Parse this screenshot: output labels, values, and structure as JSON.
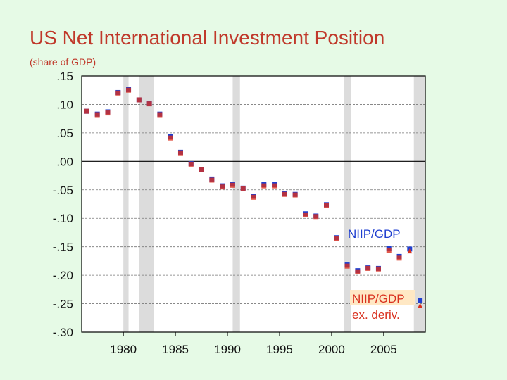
{
  "slide": {
    "title": "US Net International Investment Position",
    "subtitle": "(share of GDP)"
  },
  "chart_data": {
    "type": "scatter",
    "title": "",
    "xlabel": "",
    "ylabel": "",
    "xlim": [
      1976,
      2009
    ],
    "ylim": [
      -0.3,
      0.15
    ],
    "x_ticks": [
      1980,
      1985,
      1990,
      1995,
      2000,
      2005
    ],
    "x_tick_labels": [
      "1980",
      "1985",
      "1990",
      "1995",
      "2000",
      "2005"
    ],
    "y_ticks": [
      0.15,
      0.1,
      0.05,
      0.0,
      -0.05,
      -0.1,
      -0.15,
      -0.2,
      -0.25,
      -0.3
    ],
    "y_tick_labels": [
      ".15",
      ".10",
      ".05",
      ".00",
      "-.05",
      "-.10",
      "-.15",
      "-.20",
      "-.25",
      "-.30"
    ],
    "grid": true,
    "recession_shading": [
      [
        1980.0,
        1980.5
      ],
      [
        1981.5,
        1982.9
      ],
      [
        1990.5,
        1991.2
      ],
      [
        2001.2,
        2001.9
      ],
      [
        2007.9,
        2009.0
      ]
    ],
    "series": [
      {
        "name": "NIIP/GDP",
        "color": "#1f3fd0",
        "marker": "square",
        "points": [
          [
            1976.5,
            0.088
          ],
          [
            1977.5,
            0.083
          ],
          [
            1978.5,
            0.087
          ],
          [
            1979.5,
            0.121
          ],
          [
            1980.5,
            0.126
          ],
          [
            1981.5,
            0.108
          ],
          [
            1982.5,
            0.102
          ],
          [
            1983.5,
            0.083
          ],
          [
            1984.5,
            0.044
          ],
          [
            1985.5,
            0.016
          ],
          [
            1986.5,
            -0.004
          ],
          [
            1987.5,
            -0.014
          ],
          [
            1988.5,
            -0.031
          ],
          [
            1989.5,
            -0.043
          ],
          [
            1990.5,
            -0.04
          ],
          [
            1991.5,
            -0.047
          ],
          [
            1992.5,
            -0.061
          ],
          [
            1993.5,
            -0.041
          ],
          [
            1994.5,
            -0.041
          ],
          [
            1995.5,
            -0.056
          ],
          [
            1996.5,
            -0.058
          ],
          [
            1997.5,
            -0.092
          ],
          [
            1998.5,
            -0.096
          ],
          [
            1999.5,
            -0.076
          ],
          [
            2000.5,
            -0.134
          ],
          [
            2001.5,
            -0.182
          ],
          [
            2002.5,
            -0.192
          ],
          [
            2003.5,
            -0.187
          ],
          [
            2004.5,
            -0.188
          ],
          [
            2005.5,
            -0.153
          ],
          [
            2006.5,
            -0.167
          ],
          [
            2007.5,
            -0.154
          ],
          [
            2008.5,
            -0.244
          ]
        ]
      },
      {
        "name": "NIIP/GDP ex. deriv.",
        "color": "#d9301e",
        "marker": "mixed",
        "points": [
          [
            1976.5,
            0.088
          ],
          [
            1977.5,
            0.082
          ],
          [
            1978.5,
            0.085
          ],
          [
            1979.5,
            0.12
          ],
          [
            1980.5,
            0.125
          ],
          [
            1981.5,
            0.108
          ],
          [
            1982.5,
            0.101
          ],
          [
            1983.5,
            0.082
          ],
          [
            1984.5,
            0.041
          ],
          [
            1985.5,
            0.015
          ],
          [
            1986.5,
            -0.005
          ],
          [
            1987.5,
            -0.015
          ],
          [
            1988.5,
            -0.033
          ],
          [
            1989.5,
            -0.045
          ],
          [
            1990.5,
            -0.042
          ],
          [
            1991.5,
            -0.048
          ],
          [
            1992.5,
            -0.063
          ],
          [
            1993.5,
            -0.043
          ],
          [
            1994.5,
            -0.043
          ],
          [
            1995.5,
            -0.058
          ],
          [
            1996.5,
            -0.059
          ],
          [
            1997.5,
            -0.094
          ],
          [
            1998.5,
            -0.097
          ],
          [
            1999.5,
            -0.078
          ],
          [
            2000.5,
            -0.136
          ],
          [
            2001.5,
            -0.184
          ],
          [
            2002.5,
            -0.194
          ],
          [
            2003.5,
            -0.188
          ],
          [
            2004.5,
            -0.189
          ],
          [
            2005.5,
            -0.156
          ],
          [
            2006.5,
            -0.17
          ],
          [
            2007.5,
            -0.158
          ],
          [
            2008.5,
            -0.254
          ]
        ]
      }
    ],
    "annotations": [
      {
        "series": 0,
        "lines": [
          "NIIP/GDP"
        ]
      },
      {
        "series": 1,
        "lines": [
          "NIIP/GDP",
          "ex. deriv."
        ]
      }
    ]
  }
}
